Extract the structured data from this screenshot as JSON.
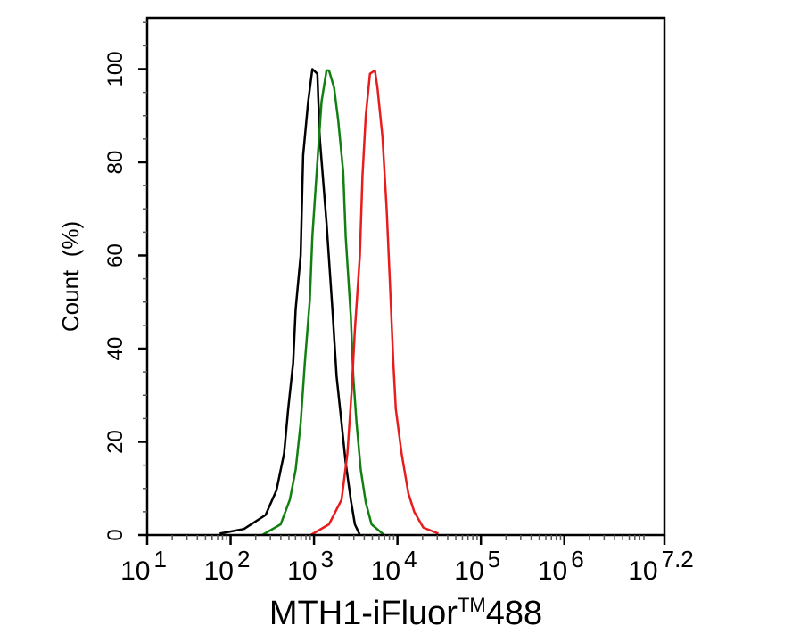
{
  "chart_data": {
    "type": "line",
    "title": "",
    "xlabel": "MTH1-iFluor",
    "xlabel_sup": "TM",
    "xlabel_suffix": "488",
    "ylabel": "Count  (%)",
    "xscale": "log",
    "xlim_log10": [
      1,
      7.2
    ],
    "ylim": [
      0,
      111
    ],
    "grid": false,
    "x_ticks": [
      {
        "base": "10",
        "exp": "1",
        "log10": 1
      },
      {
        "base": "10",
        "exp": "2",
        "log10": 2
      },
      {
        "base": "10",
        "exp": "3",
        "log10": 3
      },
      {
        "base": "10",
        "exp": "4",
        "log10": 4
      },
      {
        "base": "10",
        "exp": "5",
        "log10": 5
      },
      {
        "base": "10",
        "exp": "6",
        "log10": 6
      },
      {
        "base": "10",
        "exp": "7.2",
        "log10": 7.2
      }
    ],
    "y_ticks": [
      "0",
      "20",
      "40",
      "60",
      "80",
      "100"
    ],
    "series": [
      {
        "color": "#000000",
        "x": [
          74,
          145,
          263,
          355,
          437,
          490,
          562,
          603,
          692,
          741,
          851,
          955,
          1096,
          1175,
          1413,
          1660,
          1862,
          2138,
          2399,
          2754,
          3090,
          3548
        ],
        "y": [
          0.3,
          1.3,
          4.3,
          9.6,
          17.5,
          27,
          37,
          48.5,
          60,
          81.5,
          93,
          100,
          99,
          85,
          67,
          48.5,
          34,
          24,
          15.5,
          7.6,
          2.3,
          0
        ]
      },
      {
        "color": "#118011",
        "x": [
          240,
          398,
          513,
          603,
          692,
          776,
          891,
          955,
          1096,
          1230,
          1413,
          1514,
          1738,
          1950,
          2239,
          2399,
          2754,
          2951,
          3236,
          3631,
          4169,
          4898,
          6918
        ],
        "y": [
          0,
          2.3,
          7.6,
          14,
          24,
          37,
          50.5,
          64,
          80,
          93,
          99.7,
          99.7,
          96,
          89,
          78,
          64,
          47,
          34,
          24,
          14,
          7,
          2.3,
          0
        ]
      },
      {
        "color": "#e81c1c",
        "x": [
          912,
          1514,
          2138,
          2512,
          2818,
          3090,
          3548,
          3802,
          4169,
          4677,
          5370,
          5754,
          6607,
          7413,
          8128,
          8913,
          9550,
          11220,
          13490,
          15849,
          20417,
          30903
        ],
        "y": [
          0,
          2.3,
          7.6,
          17.5,
          30.7,
          44,
          60,
          77,
          90,
          99,
          99.7,
          96,
          85.5,
          70,
          54,
          37,
          27,
          17.5,
          9,
          5,
          1.6,
          0.3
        ]
      }
    ]
  }
}
